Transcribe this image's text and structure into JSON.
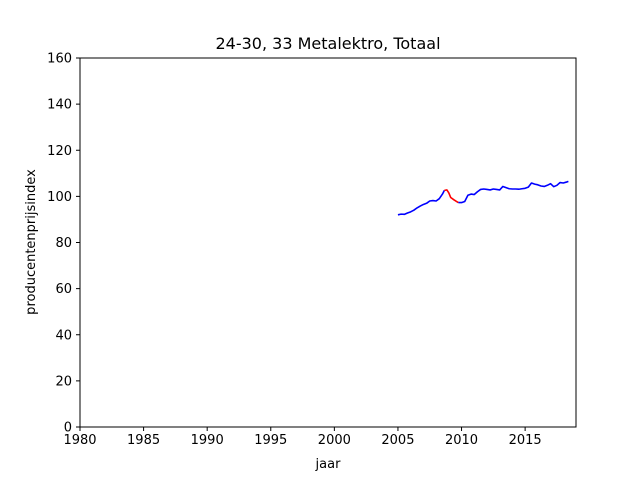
{
  "chart_data": {
    "type": "line",
    "title": "24-30, 33 Metalektro, Totaal",
    "xlabel": "jaar",
    "ylabel": "producentenprijsindex",
    "xlim": [
      1980,
      2019
    ],
    "ylim": [
      0,
      160
    ],
    "xticks": [
      1980,
      1985,
      1990,
      1995,
      2000,
      2005,
      2010,
      2015
    ],
    "yticks": [
      0,
      20,
      40,
      60,
      80,
      100,
      120,
      140,
      160
    ],
    "grid": false,
    "series": [
      {
        "color": "#0000ff",
        "points": [
          [
            2005.0,
            92.0
          ],
          [
            2005.25,
            92.3
          ],
          [
            2005.5,
            92.2
          ],
          [
            2005.75,
            92.8
          ],
          [
            2006.0,
            93.3
          ],
          [
            2006.25,
            94.0
          ],
          [
            2006.5,
            95.0
          ],
          [
            2006.75,
            95.8
          ],
          [
            2007.0,
            96.5
          ],
          [
            2007.25,
            97.0
          ],
          [
            2007.5,
            98.0
          ],
          [
            2007.75,
            98.2
          ],
          [
            2008.0,
            98.0
          ],
          [
            2008.25,
            99.0
          ],
          [
            2008.5,
            101.0
          ],
          [
            2008.65,
            102.6
          ]
        ]
      },
      {
        "color": "#ff0000",
        "points": [
          [
            2008.65,
            102.6
          ],
          [
            2008.85,
            102.8
          ],
          [
            2009.0,
            101.5
          ],
          [
            2009.15,
            99.5
          ],
          [
            2009.4,
            98.5
          ],
          [
            2009.6,
            97.8
          ],
          [
            2009.75,
            97.3
          ]
        ]
      },
      {
        "color": "#0000ff",
        "points": [
          [
            2009.75,
            97.3
          ],
          [
            2010.0,
            97.3
          ],
          [
            2010.25,
            97.8
          ],
          [
            2010.5,
            100.5
          ],
          [
            2010.75,
            101.0
          ],
          [
            2011.0,
            100.8
          ],
          [
            2011.25,
            102.0
          ],
          [
            2011.5,
            103.0
          ],
          [
            2011.75,
            103.2
          ],
          [
            2012.0,
            103.0
          ],
          [
            2012.25,
            102.8
          ],
          [
            2012.5,
            103.2
          ],
          [
            2012.75,
            103.0
          ],
          [
            2013.0,
            102.8
          ],
          [
            2013.25,
            104.3
          ],
          [
            2013.5,
            103.8
          ],
          [
            2013.75,
            103.3
          ],
          [
            2014.0,
            103.2
          ],
          [
            2014.25,
            103.2
          ],
          [
            2014.5,
            103.1
          ],
          [
            2014.75,
            103.3
          ],
          [
            2015.0,
            103.5
          ],
          [
            2015.25,
            104.0
          ],
          [
            2015.5,
            105.8
          ],
          [
            2015.75,
            105.3
          ],
          [
            2016.0,
            105.0
          ],
          [
            2016.25,
            104.5
          ],
          [
            2016.5,
            104.3
          ],
          [
            2016.75,
            104.8
          ],
          [
            2017.0,
            105.5
          ],
          [
            2017.25,
            104.2
          ],
          [
            2017.5,
            104.8
          ],
          [
            2017.75,
            106.0
          ],
          [
            2018.0,
            105.8
          ],
          [
            2018.25,
            106.2
          ],
          [
            2018.4,
            106.5
          ]
        ]
      }
    ]
  }
}
